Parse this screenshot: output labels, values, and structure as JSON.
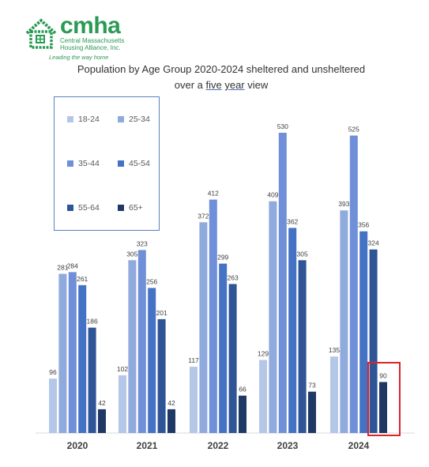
{
  "logo": {
    "wordmark": "cmha",
    "org_name": "Central Massachusetts Housing Alliance, Inc.",
    "tagline": "Leading the way home",
    "color": "#2a9a54"
  },
  "title": {
    "line1": "Population by Age Group 2020-2024 sheltered and unsheltered",
    "line2_prefix": "over a ",
    "line2_word1": "five",
    "line2_word2": "year",
    "line2_suffix": " view"
  },
  "highlight": {
    "year": "2024",
    "series": "65+",
    "color": "#d9252a"
  },
  "chart_data": {
    "type": "bar",
    "title": "Population by Age Group 2020-2024 sheltered and unsheltered over a five year view",
    "xlabel": "",
    "ylabel": "",
    "ylim": [
      0,
      600
    ],
    "grid": false,
    "legend_position": "top-left",
    "categories": [
      "2020",
      "2021",
      "2022",
      "2023",
      "2024"
    ],
    "series": [
      {
        "name": "18-24",
        "color": "#b4c7e7",
        "values": [
          96,
          102,
          117,
          129,
          135
        ]
      },
      {
        "name": "25-34",
        "color": "#8faadc",
        "values": [
          281,
          305,
          372,
          409,
          393
        ]
      },
      {
        "name": "35-44",
        "color": "#6f8fd8",
        "values": [
          284,
          323,
          412,
          530,
          525
        ]
      },
      {
        "name": "45-54",
        "color": "#4472c4",
        "values": [
          261,
          256,
          299,
          362,
          356
        ]
      },
      {
        "name": "55-64",
        "color": "#2f5597",
        "values": [
          186,
          201,
          263,
          305,
          324
        ]
      },
      {
        "name": "65+",
        "color": "#203864",
        "values": [
          42,
          42,
          66,
          73,
          90
        ]
      }
    ]
  }
}
